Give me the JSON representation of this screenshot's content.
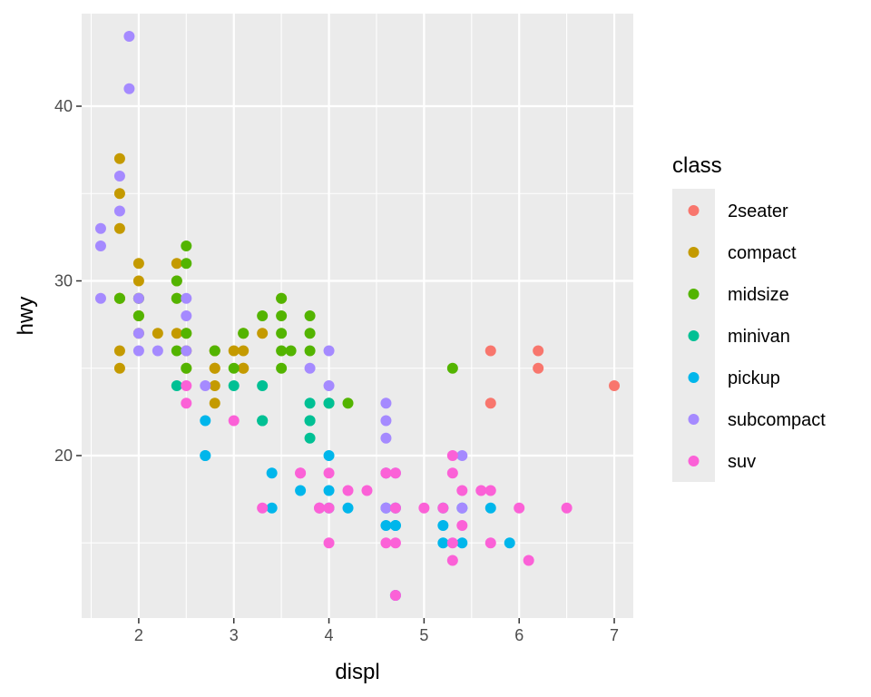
{
  "chart_data": {
    "type": "scatter",
    "xlabel": "displ",
    "ylabel": "hwy",
    "xlim": [
      1.4,
      7.2
    ],
    "ylim": [
      10.7,
      45.3
    ],
    "x_ticks": [
      2,
      3,
      4,
      5,
      6,
      7
    ],
    "y_ticks": [
      20,
      30,
      40
    ],
    "grid": true,
    "legend": {
      "title": "class",
      "placement": "right",
      "entries": [
        {
          "name": "2seater",
          "color": "#F8766D"
        },
        {
          "name": "compact",
          "color": "#C49A00"
        },
        {
          "name": "midsize",
          "color": "#53B400"
        },
        {
          "name": "minivan",
          "color": "#00C094"
        },
        {
          "name": "pickup",
          "color": "#00B6EB"
        },
        {
          "name": "subcompact",
          "color": "#A58AFF"
        },
        {
          "name": "suv",
          "color": "#FB61D7"
        }
      ]
    },
    "series": [
      {
        "name": "2seater",
        "color": "#F8766D",
        "points": [
          [
            5.7,
            26
          ],
          [
            5.7,
            23
          ],
          [
            6.2,
            26
          ],
          [
            6.2,
            25
          ],
          [
            7.0,
            24
          ]
        ]
      },
      {
        "name": "compact",
        "color": "#C49A00",
        "points": [
          [
            1.8,
            29
          ],
          [
            1.8,
            29
          ],
          [
            2.0,
            31
          ],
          [
            2.0,
            30
          ],
          [
            2.8,
            26
          ],
          [
            2.8,
            26
          ],
          [
            3.1,
            27
          ],
          [
            1.8,
            26
          ],
          [
            1.8,
            25
          ],
          [
            2.0,
            28
          ],
          [
            2.0,
            27
          ],
          [
            2.8,
            25
          ],
          [
            2.8,
            25
          ],
          [
            3.1,
            25
          ],
          [
            3.1,
            25
          ],
          [
            2.4,
            27
          ],
          [
            2.4,
            30
          ],
          [
            3.1,
            26
          ],
          [
            3.5,
            29
          ],
          [
            3.3,
            27
          ],
          [
            1.8,
            37
          ],
          [
            1.8,
            35
          ],
          [
            1.8,
            33
          ],
          [
            2.2,
            27
          ],
          [
            2.4,
            31
          ],
          [
            2.5,
            26
          ],
          [
            2.5,
            25
          ],
          [
            2.8,
            24
          ],
          [
            2.8,
            23
          ],
          [
            3.0,
            26
          ],
          [
            2.4,
            29
          ],
          [
            2.5,
            27
          ],
          [
            1.8,
            29
          ],
          [
            2.0,
            29
          ],
          [
            2.0,
            28
          ]
        ]
      },
      {
        "name": "midsize",
        "color": "#53B400",
        "points": [
          [
            2.4,
            26
          ],
          [
            2.4,
            29
          ],
          [
            2.5,
            32
          ],
          [
            2.5,
            31
          ],
          [
            2.4,
            30
          ],
          [
            2.5,
            27
          ],
          [
            3.3,
            28
          ],
          [
            3.5,
            26
          ],
          [
            3.5,
            28
          ],
          [
            3.6,
            26
          ],
          [
            3.5,
            29
          ],
          [
            3.5,
            27
          ],
          [
            3.8,
            26
          ],
          [
            3.8,
            28
          ],
          [
            3.8,
            27
          ],
          [
            4.0,
            23
          ],
          [
            4.2,
            23
          ],
          [
            5.3,
            25
          ],
          [
            3.1,
            27
          ],
          [
            3.0,
            25
          ],
          [
            2.0,
            29
          ],
          [
            2.0,
            28
          ],
          [
            1.8,
            29
          ],
          [
            2.5,
            25
          ],
          [
            2.8,
            26
          ],
          [
            3.5,
            25
          ]
        ]
      },
      {
        "name": "minivan",
        "color": "#00C094",
        "points": [
          [
            2.4,
            24
          ],
          [
            3.0,
            24
          ],
          [
            3.3,
            22
          ],
          [
            3.3,
            24
          ],
          [
            3.3,
            22
          ],
          [
            3.8,
            22
          ],
          [
            3.8,
            21
          ],
          [
            3.8,
            23
          ],
          [
            3.8,
            22
          ],
          [
            4.0,
            23
          ]
        ]
      },
      {
        "name": "pickup",
        "color": "#00B6EB",
        "points": [
          [
            2.7,
            20
          ],
          [
            2.7,
            22
          ],
          [
            2.7,
            20
          ],
          [
            3.4,
            19
          ],
          [
            3.4,
            17
          ],
          [
            4.0,
            20
          ],
          [
            4.0,
            17
          ],
          [
            4.6,
            16
          ],
          [
            4.6,
            17
          ],
          [
            4.7,
            16
          ],
          [
            4.7,
            17
          ],
          [
            4.7,
            16
          ],
          [
            5.2,
            15
          ],
          [
            5.2,
            17
          ],
          [
            5.7,
            17
          ],
          [
            5.9,
            15
          ],
          [
            3.7,
            18
          ],
          [
            4.0,
            18
          ],
          [
            4.2,
            17
          ],
          [
            4.6,
            19
          ],
          [
            4.7,
            12
          ],
          [
            5.4,
            17
          ],
          [
            5.2,
            16
          ],
          [
            5.4,
            15
          ]
        ]
      },
      {
        "name": "subcompact",
        "color": "#A58AFF",
        "points": [
          [
            1.6,
            33
          ],
          [
            1.6,
            32
          ],
          [
            1.6,
            29
          ],
          [
            1.8,
            34
          ],
          [
            1.8,
            36
          ],
          [
            1.9,
            44
          ],
          [
            1.9,
            41
          ],
          [
            2.0,
            29
          ],
          [
            2.0,
            26
          ],
          [
            2.0,
            27
          ],
          [
            2.2,
            26
          ],
          [
            2.5,
            26
          ],
          [
            2.5,
            29
          ],
          [
            2.5,
            28
          ],
          [
            2.7,
            24
          ],
          [
            3.8,
            25
          ],
          [
            4.0,
            26
          ],
          [
            4.0,
            24
          ],
          [
            4.6,
            23
          ],
          [
            4.6,
            22
          ],
          [
            4.6,
            21
          ],
          [
            5.4,
            20
          ],
          [
            4.7,
            19
          ],
          [
            4.7,
            17
          ],
          [
            5.4,
            17
          ],
          [
            4.6,
            17
          ],
          [
            3.9,
            17
          ],
          [
            4.7,
            12
          ]
        ]
      },
      {
        "name": "suv",
        "color": "#FB61D7",
        "points": [
          [
            2.5,
            24
          ],
          [
            2.5,
            23
          ],
          [
            3.0,
            22
          ],
          [
            3.3,
            17
          ],
          [
            3.7,
            19
          ],
          [
            3.9,
            17
          ],
          [
            4.0,
            19
          ],
          [
            4.2,
            18
          ],
          [
            4.4,
            18
          ],
          [
            4.6,
            19
          ],
          [
            4.7,
            17
          ],
          [
            4.7,
            19
          ],
          [
            5.0,
            17
          ],
          [
            5.3,
            20
          ],
          [
            5.3,
            19
          ],
          [
            5.4,
            18
          ],
          [
            5.6,
            18
          ],
          [
            5.7,
            18
          ],
          [
            6.0,
            17
          ],
          [
            6.5,
            17
          ],
          [
            4.0,
            15
          ],
          [
            4.6,
            15
          ],
          [
            4.7,
            15
          ],
          [
            5.3,
            15
          ],
          [
            5.4,
            16
          ],
          [
            5.7,
            15
          ],
          [
            5.3,
            14
          ],
          [
            6.1,
            14
          ],
          [
            3.7,
            19
          ],
          [
            3.9,
            17
          ],
          [
            4.7,
            12
          ],
          [
            4.0,
            17
          ],
          [
            4.6,
            19
          ],
          [
            5.2,
            17
          ]
        ]
      }
    ]
  }
}
